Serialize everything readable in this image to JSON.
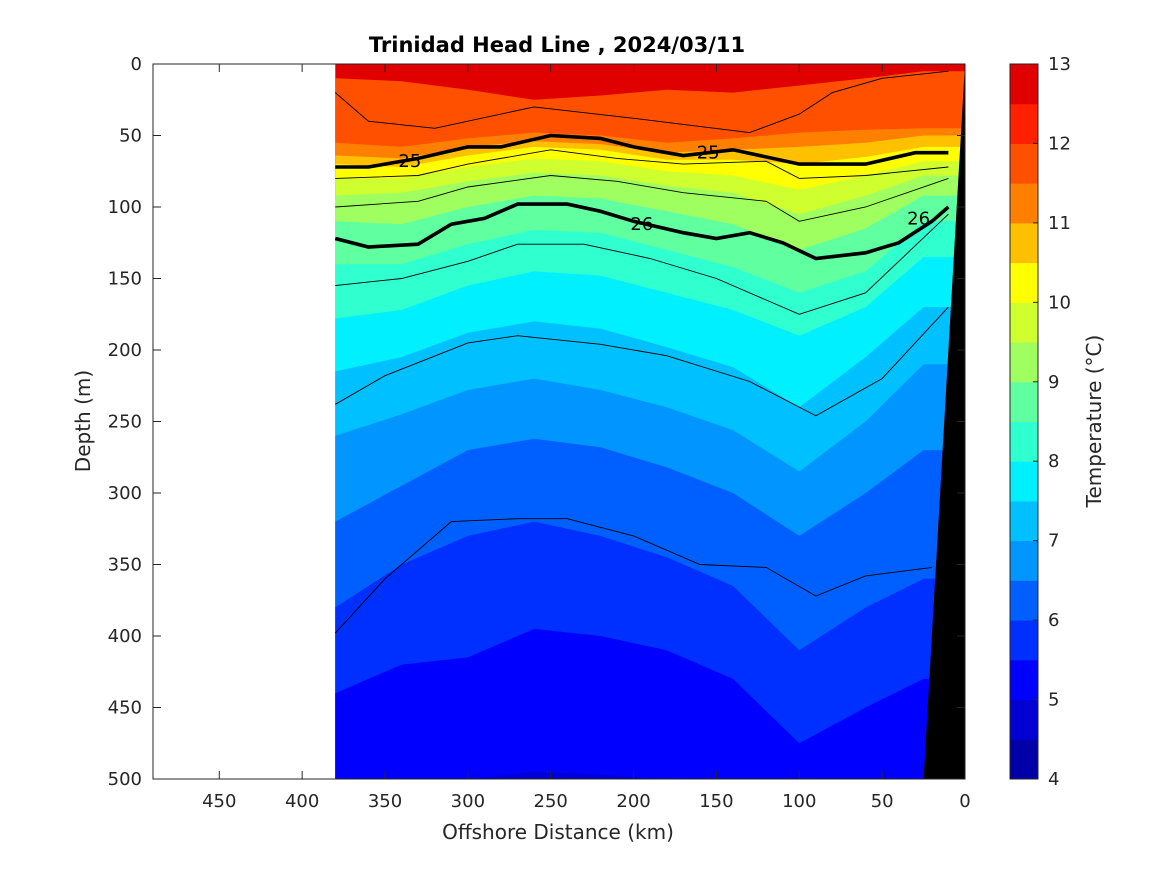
{
  "chart_data": {
    "type": "heatmap",
    "title": "Trinidad Head Line , 2024/03/11",
    "xlabel": "Offshore Distance (km)",
    "ylabel": "Depth (m)",
    "colorbar_label": "Temperature (°C)",
    "xlim": [
      490,
      0
    ],
    "ylim": [
      500,
      0
    ],
    "x_reversed": true,
    "y_reversed": true,
    "xticks": [
      450,
      400,
      350,
      300,
      250,
      200,
      150,
      100,
      50,
      0
    ],
    "xtick_labels": [
      "450",
      "400",
      "350",
      "300",
      "250",
      "200",
      "150",
      "100",
      "50",
      "0"
    ],
    "yticks": [
      0,
      50,
      100,
      150,
      200,
      250,
      300,
      350,
      400,
      450,
      500
    ],
    "ytick_labels": [
      "0",
      "50",
      "100",
      "150",
      "200",
      "250",
      "300",
      "350",
      "400",
      "450",
      "500"
    ],
    "colorbar_ticks": [
      4,
      5,
      6,
      7,
      8,
      9,
      10,
      11,
      12,
      13
    ],
    "colorbar_tick_labels": [
      "4",
      "5",
      "6",
      "7",
      "8",
      "9",
      "10",
      "11",
      "12",
      "13"
    ],
    "colorbar_levels": [
      4,
      4.5,
      5,
      5.5,
      6,
      6.5,
      7,
      7.5,
      8,
      8.5,
      9,
      9.5,
      10,
      10.5,
      11,
      11.5,
      12,
      12.5,
      13
    ],
    "colorbar_colors": [
      "#000080",
      "#0000a8",
      "#0000d4",
      "#0000ff",
      "#0030ff",
      "#0060ff",
      "#0095ff",
      "#00c0ff",
      "#00f0ff",
      "#30ffd0",
      "#60ffa0",
      "#a0ff60",
      "#d0ff30",
      "#ffff00",
      "#ffc000",
      "#ff8000",
      "#ff5000",
      "#ff2000",
      "#e00000",
      "#b00000"
    ],
    "data_start_km": 380,
    "temperature_contours": [
      {
        "t": 12.0,
        "x": [
          380,
          340,
          300,
          260,
          220,
          180,
          140,
          100,
          60,
          25
        ],
        "depth": [
          10,
          12,
          18,
          25,
          22,
          18,
          20,
          15,
          10,
          5
        ]
      },
      {
        "t": 11.5,
        "x": [
          380,
          340,
          300,
          260,
          220,
          180,
          140,
          100,
          60,
          25
        ],
        "depth": [
          55,
          58,
          52,
          48,
          50,
          55,
          52,
          48,
          46,
          45
        ]
      },
      {
        "t": 11.0,
        "x": [
          380,
          340,
          300,
          260,
          220,
          180,
          140,
          100,
          60,
          25
        ],
        "depth": [
          64,
          66,
          58,
          54,
          56,
          62,
          60,
          58,
          55,
          50
        ]
      },
      {
        "t": 10.5,
        "x": [
          380,
          340,
          300,
          260,
          220,
          180,
          140,
          100,
          60,
          25
        ],
        "depth": [
          70,
          72,
          64,
          58,
          60,
          67,
          67,
          70,
          65,
          58
        ]
      },
      {
        "t": 10.0,
        "x": [
          380,
          340,
          300,
          260,
          220,
          180,
          140,
          100,
          60,
          25
        ],
        "depth": [
          80,
          80,
          72,
          66,
          68,
          75,
          78,
          88,
          78,
          68
        ]
      },
      {
        "t": 9.5,
        "x": [
          380,
          340,
          300,
          260,
          220,
          180,
          140,
          100,
          60,
          25
        ],
        "depth": [
          92,
          90,
          82,
          76,
          78,
          85,
          90,
          105,
          92,
          78
        ]
      },
      {
        "t": 9.0,
        "x": [
          380,
          340,
          300,
          260,
          220,
          180,
          140,
          100,
          60,
          25
        ],
        "depth": [
          110,
          112,
          100,
          92,
          94,
          103,
          112,
          130,
          115,
          92
        ]
      },
      {
        "t": 8.5,
        "x": [
          380,
          340,
          300,
          260,
          220,
          180,
          140,
          100,
          60,
          25
        ],
        "depth": [
          140,
          140,
          126,
          116,
          118,
          130,
          142,
          160,
          145,
          110
        ]
      },
      {
        "t": 8.0,
        "x": [
          380,
          340,
          300,
          260,
          220,
          180,
          140,
          100,
          60,
          25
        ],
        "depth": [
          178,
          172,
          155,
          145,
          148,
          160,
          172,
          190,
          170,
          135
        ]
      },
      {
        "t": 7.5,
        "x": [
          380,
          340,
          300,
          260,
          220,
          180,
          140,
          100,
          60,
          25
        ],
        "depth": [
          215,
          205,
          188,
          180,
          185,
          198,
          212,
          240,
          205,
          170
        ]
      },
      {
        "t": 7.0,
        "x": [
          380,
          340,
          300,
          260,
          220,
          180,
          140,
          100,
          60,
          25
        ],
        "depth": [
          260,
          245,
          228,
          220,
          228,
          240,
          256,
          285,
          250,
          210
        ]
      },
      {
        "t": 6.5,
        "x": [
          380,
          340,
          300,
          260,
          220,
          180,
          140,
          100,
          60,
          25
        ],
        "depth": [
          320,
          295,
          270,
          262,
          268,
          282,
          300,
          330,
          300,
          270
        ]
      },
      {
        "t": 6.0,
        "x": [
          380,
          340,
          300,
          260,
          220,
          180,
          140,
          100,
          60,
          25
        ],
        "depth": [
          380,
          350,
          330,
          320,
          330,
          345,
          365,
          410,
          380,
          360
        ]
      },
      {
        "t": 5.5,
        "x": [
          380,
          340,
          300,
          260,
          220,
          180,
          140,
          100,
          60,
          25
        ],
        "depth": [
          440,
          420,
          415,
          395,
          400,
          410,
          430,
          475,
          450,
          430
        ]
      },
      {
        "t": 5.0,
        "x": [
          380,
          340,
          300,
          260,
          220,
          180,
          140,
          100,
          60,
          25
        ],
        "depth": [
          500,
          500,
          500,
          495,
          497,
          500,
          500,
          500,
          500,
          500
        ]
      }
    ],
    "density_contours": [
      {
        "label": "25",
        "x": [
          380,
          360,
          330,
          300,
          280,
          250,
          220,
          200,
          170,
          140,
          100,
          60,
          30,
          10
        ],
        "depth": [
          72,
          72,
          66,
          58,
          58,
          50,
          52,
          58,
          64,
          60,
          70,
          70,
          62,
          62
        ]
      },
      {
        "label": "26",
        "x": [
          380,
          360,
          330,
          310,
          290,
          270,
          240,
          220,
          200,
          170,
          150,
          130,
          110,
          90,
          60,
          40,
          20,
          10
        ],
        "depth": [
          122,
          128,
          126,
          112,
          108,
          98,
          98,
          103,
          110,
          118,
          122,
          118,
          125,
          136,
          132,
          125,
          110,
          100
        ]
      }
    ],
    "density_labels": [
      {
        "text": "25",
        "x": 335,
        "depth": 68
      },
      {
        "text": "25",
        "x": 155,
        "depth": 62
      },
      {
        "text": "26",
        "x": 195,
        "depth": 112
      },
      {
        "text": "26",
        "x": 28,
        "depth": 108
      }
    ],
    "thin_contours": [
      {
        "x": [
          380,
          330,
          300,
          250,
          210,
          170,
          120,
          100,
          60,
          10
        ],
        "depth": [
          80,
          78,
          70,
          60,
          66,
          70,
          68,
          80,
          78,
          72
        ]
      },
      {
        "x": [
          380,
          330,
          300,
          250,
          210,
          170,
          120,
          100,
          60,
          10
        ],
        "depth": [
          100,
          96,
          86,
          78,
          82,
          90,
          96,
          110,
          100,
          80
        ]
      },
      {
        "x": [
          380,
          340,
          300,
          270,
          230,
          190,
          150,
          100,
          60,
          10
        ],
        "depth": [
          155,
          150,
          138,
          126,
          126,
          136,
          150,
          175,
          160,
          105
        ]
      },
      {
        "x": [
          380,
          350,
          300,
          270,
          220,
          180,
          130,
          90,
          50,
          10
        ],
        "depth": [
          238,
          218,
          195,
          190,
          196,
          204,
          222,
          246,
          220,
          170
        ]
      },
      {
        "x": [
          380,
          350,
          310,
          270,
          240,
          200,
          160,
          120,
          90,
          60,
          20
        ],
        "depth": [
          398,
          360,
          320,
          318,
          318,
          330,
          350,
          352,
          372,
          358,
          352
        ]
      },
      {
        "x": [
          380,
          360,
          320,
          260,
          200,
          130,
          100,
          80,
          50,
          10
        ],
        "depth": [
          20,
          40,
          45,
          30,
          38,
          48,
          35,
          20,
          10,
          5
        ]
      }
    ],
    "bottom_topography": {
      "x": [
        25,
        10,
        0
      ],
      "depth": [
        500,
        200,
        0
      ]
    }
  }
}
